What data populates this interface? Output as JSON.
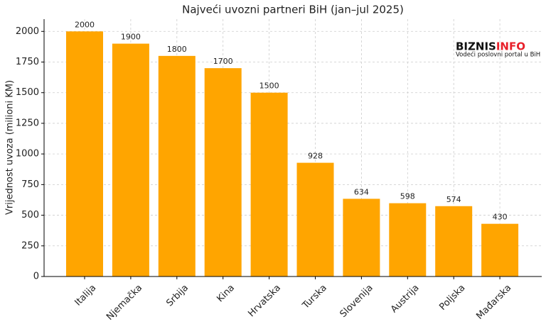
{
  "chart_data": {
    "type": "bar",
    "title": "Najveći uvozni partneri BiH (jan–jul 2025)",
    "y_label": "Vrijednost uvoza (milioni KM)",
    "categories": [
      "Italija",
      "Njemačka",
      "Srbija",
      "Kina",
      "Hrvatska",
      "Turska",
      "Slovenija",
      "Austrija",
      "Poljska",
      "Mađarska"
    ],
    "values": [
      2000,
      1900,
      1800,
      1700,
      1500,
      928,
      634,
      598,
      574,
      430
    ],
    "color": "#ffa500",
    "ylim": [
      0,
      2100
    ],
    "yticks": [
      0,
      250,
      500,
      750,
      1000,
      1250,
      1500,
      1750,
      2000
    ],
    "grid": true,
    "logo": [
      "BIZNIS",
      "INFO"
    ],
    "logo_tagline": "Vodeći poslovni portal u BiH"
  }
}
